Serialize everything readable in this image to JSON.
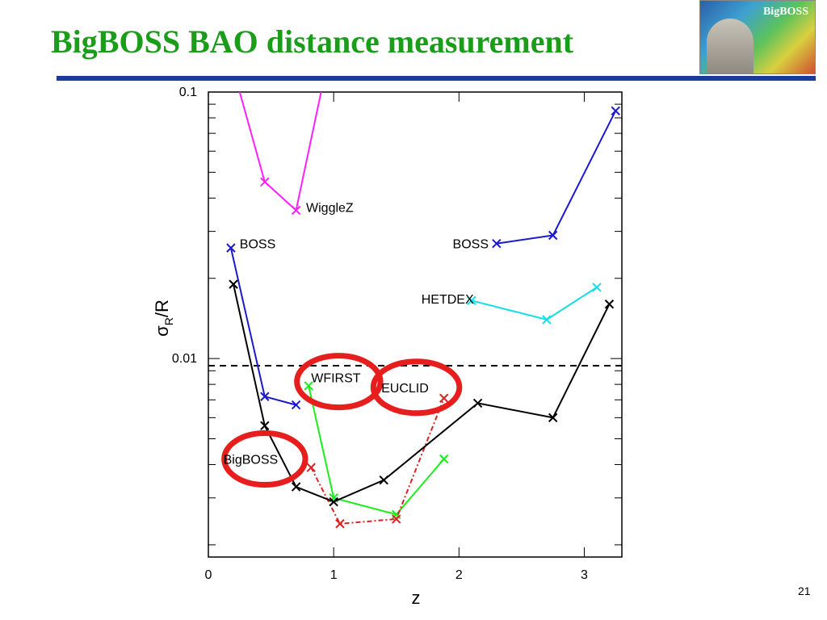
{
  "slide": {
    "title": "BigBOSS BAO distance measurement",
    "logo_text": "BigBOSS",
    "page_number": "21"
  },
  "chart_data": {
    "type": "line",
    "xlabel": "z",
    "ylabel": "σ_R/R",
    "ylabel_main": "σ",
    "ylabel_sub": "R",
    "ylabel_tail": "/R",
    "yscale": "log",
    "xlim": [
      0,
      3.3
    ],
    "ylim": [
      0.0018,
      0.1
    ],
    "xticks": [
      {
        "value": 0,
        "label": "0"
      },
      {
        "value": 1,
        "label": "1"
      },
      {
        "value": 2,
        "label": "2"
      },
      {
        "value": 3,
        "label": "3"
      }
    ],
    "yticks": [
      {
        "value": 0.01,
        "label": "0.01"
      },
      {
        "value": 0.1,
        "label": "0.1"
      }
    ],
    "reference_line": {
      "y": 0.0094,
      "style": "dashed",
      "color": "#000000"
    },
    "series": [
      {
        "name": "",
        "color": "#ff1fff",
        "dash": "",
        "x": [
          0.25,
          0.45,
          0.7,
          0.9
        ],
        "y": [
          0.1,
          0.046,
          0.036,
          0.1
        ],
        "markers": [
          false,
          true,
          true,
          false
        ]
      },
      {
        "name": "",
        "color": "#1a1acc",
        "dash": "",
        "x": [
          0.18,
          0.45,
          0.7
        ],
        "y": [
          0.026,
          0.0072,
          0.0067
        ],
        "markers": [
          true,
          true,
          true
        ]
      },
      {
        "name": "",
        "color": "#1a1acc",
        "dash": "",
        "x": [
          2.3,
          2.75,
          3.25
        ],
        "y": [
          0.027,
          0.029,
          0.085
        ],
        "markers": [
          true,
          true,
          true
        ]
      },
      {
        "name": "",
        "color": "#14dde8",
        "dash": "",
        "x": [
          2.1,
          2.7,
          3.1
        ],
        "y": [
          0.0165,
          0.014,
          0.0185
        ],
        "markers": [
          true,
          true,
          true
        ]
      },
      {
        "name": "",
        "color": "#1aee1a",
        "dash": "",
        "x": [
          0.8,
          1.0,
          1.5,
          1.88
        ],
        "y": [
          0.0079,
          0.003,
          0.0026,
          0.0042
        ],
        "markers": [
          true,
          true,
          true,
          true
        ]
      },
      {
        "name": "",
        "color": "#dd2222",
        "dash": "6,3,2,3",
        "x": [
          0.82,
          1.05,
          1.5,
          1.88
        ],
        "y": [
          0.0039,
          0.0024,
          0.0025,
          0.0071
        ],
        "markers": [
          true,
          true,
          true,
          true
        ]
      },
      {
        "name": "",
        "color": "#000000",
        "dash": "",
        "x": [
          0.2,
          0.45,
          0.7,
          1.0,
          1.4,
          2.15,
          2.75,
          3.2
        ],
        "y": [
          0.019,
          0.0056,
          0.0033,
          0.0029,
          0.0035,
          0.0068,
          0.006,
          0.016
        ],
        "markers": [
          true,
          true,
          true,
          true,
          true,
          true,
          true,
          true
        ]
      }
    ],
    "annotations": [
      {
        "text": "WiggleZ",
        "x": 0.78,
        "y": 0.037,
        "anchor": "start"
      },
      {
        "text": "BOSS",
        "x": 0.25,
        "y": 0.027,
        "anchor": "start"
      },
      {
        "text": "BOSS",
        "x": 1.95,
        "y": 0.027,
        "anchor": "start"
      },
      {
        "text": "HETDEX",
        "x": 1.7,
        "y": 0.0168,
        "anchor": "start"
      },
      {
        "text": "WFIRST",
        "x": 0.82,
        "y": 0.0085,
        "anchor": "start"
      },
      {
        "text": "EUCLID",
        "x": 1.38,
        "y": 0.0078,
        "anchor": "start"
      },
      {
        "text": "BigBOSS",
        "x": 0.12,
        "y": 0.0042,
        "anchor": "start"
      }
    ],
    "highlights": [
      {
        "label": "BigBOSS",
        "x": 0.45,
        "y": 0.0042,
        "rx": 0.13,
        "color": "#e61e1e"
      },
      {
        "label": "WFIRST",
        "x": 1.04,
        "y": 0.0082,
        "rx": 0.14,
        "color": "#e61e1e"
      },
      {
        "label": "EUCLID",
        "x": 1.66,
        "y": 0.0078,
        "rx": 0.15,
        "color": "#e61e1e"
      }
    ]
  }
}
